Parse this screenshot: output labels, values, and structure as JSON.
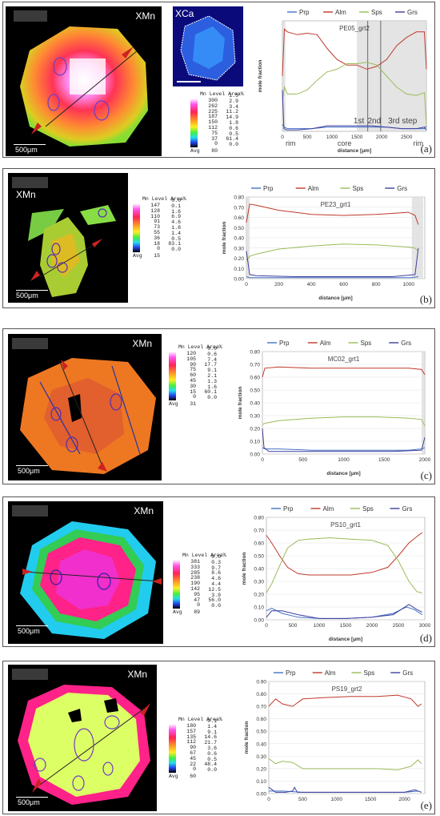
{
  "panels": [
    {
      "id": "a",
      "letter": "(a)",
      "map_label": "XMn",
      "inset_label": "XCa",
      "scale_label": "500μm",
      "legend": {
        "header_level": "Mn Level",
        "header_area": "Area%",
        "levels": [
          "300",
          "262",
          "225",
          "187",
          "150",
          "112",
          "75",
          "37",
          "0"
        ],
        "areas": [
          "1.5",
          "2.9",
          "3.4",
          "11.2",
          "14.9",
          "1.8",
          "0.6",
          "0.5",
          "61.4",
          "0.0"
        ],
        "avg_label": "Avg",
        "avg_value": "80"
      }
    },
    {
      "id": "b",
      "letter": "(b)",
      "map_label": "XMn",
      "scale_label": "500μm",
      "legend": {
        "header_level": "Mn Level",
        "header_area": "Area%",
        "levels": [
          "147",
          "128",
          "110",
          "91",
          "73",
          "55",
          "36",
          "18",
          "0"
        ],
        "areas": [
          "0.0",
          "0.1",
          "1.6",
          "6.9",
          "4.6",
          "1.8",
          "1.4",
          "0.5",
          "83.1",
          "0.0"
        ],
        "avg_label": "Avg",
        "avg_value": "15"
      }
    },
    {
      "id": "c",
      "letter": "(c)",
      "map_label": "XMn",
      "scale_label": "500μm",
      "legend": {
        "header_level": "Mn Level",
        "header_area": "Area%",
        "levels": [
          "120",
          "105",
          "90",
          "75",
          "60",
          "45",
          "30",
          "15",
          "0"
        ],
        "areas": [
          "0.0",
          "0.6",
          "7.4",
          "17.7",
          "9.1",
          "2.1",
          "1.3",
          "1.6",
          "60.1",
          "0.0"
        ],
        "avg_label": "Avg",
        "avg_value": "31"
      }
    },
    {
      "id": "d",
      "letter": "(d)",
      "map_label": "XMn",
      "scale_label": "500μm",
      "legend": {
        "header_level": "Mn Level",
        "header_area": "Area%",
        "levels": [
          "381",
          "333",
          "285",
          "238",
          "190",
          "142",
          "95",
          "47",
          "0"
        ],
        "areas": [
          "0.0",
          "0.3",
          "9.7",
          "8.6",
          "4.6",
          "4.4",
          "12.5",
          "3.9",
          "56.0",
          "0.0"
        ],
        "avg_label": "Avg",
        "avg_value": "89"
      }
    },
    {
      "id": "e",
      "letter": "(e)",
      "map_label": "XMn",
      "scale_label": "500μm",
      "legend": {
        "header_level": "Mn Level",
        "header_area": "Area%",
        "levels": [
          "180",
          "157",
          "135",
          "112",
          "90",
          "67",
          "45",
          "22",
          "0"
        ],
        "areas": [
          "0.1",
          "1.4",
          "9.1",
          "14.6",
          "21.7",
          "3.6",
          "0.6",
          "0.5",
          "48.4",
          "0.0"
        ],
        "avg_label": "Avg",
        "avg_value": "60"
      }
    }
  ],
  "chart_data": [
    {
      "type": "line",
      "title": "PE05_grt2",
      "xlabel": "distance [μm]",
      "ylabel": "mole fraction",
      "xlim": [
        0,
        2900
      ],
      "ylim": [
        0,
        0.8
      ],
      "xticks": [
        0,
        500,
        1000,
        1500,
        2000,
        2500
      ],
      "yticks": [],
      "ylabel_hidden_ticks": true,
      "legend_position": "top",
      "annotations": [
        "rim",
        "core",
        "rim",
        "1st",
        "2nd",
        "3rd step"
      ],
      "shaded_ranges": [
        [
          0,
          60
        ],
        [
          1500,
          2950
        ]
      ],
      "step_lines": [
        1720,
        1980
      ],
      "series": [
        {
          "name": "Prp",
          "color": "#4472c4",
          "x": [
            0,
            40,
            100,
            300,
            600,
            900,
            1200,
            1500,
            1800,
            2100,
            2400,
            2700,
            2860,
            2900
          ],
          "y": [
            0.05,
            0.03,
            0.02,
            0.02,
            0.02,
            0.03,
            0.03,
            0.03,
            0.03,
            0.03,
            0.02,
            0.02,
            0.02,
            0.04
          ]
        },
        {
          "name": "Alm",
          "color": "#c0392b",
          "x": [
            0,
            40,
            100,
            300,
            500,
            700,
            900,
            1100,
            1300,
            1500,
            1700,
            1900,
            2100,
            2300,
            2500,
            2700,
            2860,
            2900
          ],
          "y": [
            0.4,
            0.74,
            0.72,
            0.7,
            0.71,
            0.7,
            0.6,
            0.52,
            0.48,
            0.48,
            0.45,
            0.47,
            0.52,
            0.62,
            0.68,
            0.72,
            0.72,
            0.45
          ]
        },
        {
          "name": "Sps",
          "color": "#9bbb59",
          "x": [
            0,
            40,
            100,
            300,
            500,
            700,
            900,
            1100,
            1300,
            1500,
            1700,
            1900,
            2100,
            2300,
            2500,
            2700,
            2860,
            2900
          ],
          "y": [
            0.22,
            0.32,
            0.27,
            0.27,
            0.3,
            0.37,
            0.43,
            0.45,
            0.49,
            0.49,
            0.5,
            0.48,
            0.4,
            0.32,
            0.27,
            0.26,
            0.28,
            0.05
          ]
        },
        {
          "name": "Grs",
          "color": "#3f3f9f",
          "x": [
            0,
            30,
            80,
            300,
            600,
            900,
            1200,
            1500,
            1800,
            2100,
            2400,
            2700,
            2860,
            2900
          ],
          "y": [
            0.3,
            0.02,
            0.01,
            0.01,
            0.02,
            0.04,
            0.04,
            0.04,
            0.04,
            0.03,
            0.02,
            0.02,
            0.03,
            0.01
          ]
        }
      ]
    },
    {
      "type": "line",
      "title": "PE23_grt1",
      "xlabel": "distance [μm]",
      "ylabel": "mole fraction",
      "xlim": [
        0,
        1100
      ],
      "ylim": [
        0,
        0.8
      ],
      "xticks": [
        0,
        200,
        400,
        600,
        800,
        1000
      ],
      "yticks": [
        0,
        0.1,
        0.2,
        0.3,
        0.4,
        0.5,
        0.6,
        0.7,
        0.8
      ],
      "legend_position": "top",
      "shaded_ranges": [
        [
          0,
          20
        ],
        [
          1020,
          1090
        ]
      ],
      "series": [
        {
          "name": "Prp",
          "color": "#4472c4",
          "x": [
            0,
            20,
            100,
            300,
            500,
            700,
            900,
            1020,
            1060
          ],
          "y": [
            0.02,
            0.01,
            0.01,
            0.01,
            0.01,
            0.01,
            0.01,
            0.01,
            0.02
          ]
        },
        {
          "name": "Alm",
          "color": "#c0392b",
          "x": [
            0,
            20,
            60,
            200,
            400,
            600,
            800,
            1000,
            1040,
            1060
          ],
          "y": [
            0.55,
            0.73,
            0.72,
            0.67,
            0.63,
            0.62,
            0.63,
            0.65,
            0.62,
            0.53
          ]
        },
        {
          "name": "Sps",
          "color": "#9bbb59",
          "x": [
            0,
            20,
            60,
            200,
            400,
            600,
            800,
            1000,
            1040,
            1060
          ],
          "y": [
            0.18,
            0.22,
            0.24,
            0.29,
            0.32,
            0.34,
            0.33,
            0.31,
            0.3,
            0.27
          ]
        },
        {
          "name": "Grs",
          "color": "#3f3f9f",
          "x": [
            0,
            20,
            60,
            300,
            600,
            900,
            1040,
            1060
          ],
          "y": [
            0.27,
            0.04,
            0.03,
            0.02,
            0.02,
            0.02,
            0.04,
            0.3
          ]
        }
      ]
    },
    {
      "type": "line",
      "title": "MC02_grt1",
      "xlabel": "distance [μm]",
      "ylabel": "mole fraction",
      "xlim": [
        0,
        2000
      ],
      "ylim": [
        0,
        0.8
      ],
      "xticks": [
        0,
        500,
        1000,
        1500,
        2000
      ],
      "yticks": [
        0,
        0.1,
        0.2,
        0.3,
        0.4,
        0.5,
        0.6,
        0.7,
        0.8
      ],
      "legend_position": "top",
      "shaded_ranges": [
        [
          1960,
          2010
        ]
      ],
      "series": [
        {
          "name": "Prp",
          "color": "#4472c4",
          "x": [
            0,
            30,
            200,
            600,
            1000,
            1400,
            1800,
            1960,
            2000
          ],
          "y": [
            0.05,
            0.04,
            0.04,
            0.03,
            0.03,
            0.03,
            0.03,
            0.04,
            0.05
          ]
        },
        {
          "name": "Alm",
          "color": "#c0392b",
          "x": [
            0,
            30,
            200,
            600,
            1000,
            1400,
            1800,
            1960,
            2000
          ],
          "y": [
            0.6,
            0.67,
            0.68,
            0.67,
            0.67,
            0.67,
            0.67,
            0.66,
            0.62
          ]
        },
        {
          "name": "Sps",
          "color": "#9bbb59",
          "x": [
            0,
            30,
            200,
            600,
            1000,
            1400,
            1800,
            1960,
            2000
          ],
          "y": [
            0.23,
            0.24,
            0.26,
            0.28,
            0.29,
            0.29,
            0.28,
            0.27,
            0.22
          ]
        },
        {
          "name": "Grs",
          "color": "#3f3f9f",
          "x": [
            0,
            20,
            80,
            400,
            800,
            1200,
            1600,
            1960,
            2000
          ],
          "y": [
            0.2,
            0.05,
            0.02,
            0.02,
            0.02,
            0.02,
            0.02,
            0.03,
            0.13
          ]
        }
      ]
    },
    {
      "type": "line",
      "title": "PS10_grt1",
      "xlabel": "distance [μm]",
      "ylabel": "mole fraction",
      "xlim": [
        0,
        3000
      ],
      "ylim": [
        0,
        0.8
      ],
      "xticks": [
        0,
        500,
        1000,
        1500,
        2000,
        2500,
        3000
      ],
      "yticks": [
        0,
        0.1,
        0.2,
        0.3,
        0.4,
        0.5,
        0.6,
        0.7,
        0.8
      ],
      "legend_position": "top",
      "series": [
        {
          "name": "Prp",
          "color": "#4472c4",
          "x": [
            0,
            100,
            300,
            600,
            1000,
            1500,
            2000,
            2400,
            2650,
            2800,
            2950
          ],
          "y": [
            0.07,
            0.09,
            0.05,
            0.02,
            0.01,
            0.01,
            0.02,
            0.05,
            0.1,
            0.08,
            0.04
          ]
        },
        {
          "name": "Alm",
          "color": "#c0392b",
          "x": [
            0,
            100,
            250,
            400,
            600,
            800,
            1200,
            1600,
            2000,
            2300,
            2500,
            2700,
            2850,
            2950
          ],
          "y": [
            0.66,
            0.6,
            0.5,
            0.41,
            0.36,
            0.35,
            0.35,
            0.35,
            0.37,
            0.41,
            0.5,
            0.6,
            0.65,
            0.68
          ]
        },
        {
          "name": "Sps",
          "color": "#9bbb59",
          "x": [
            0,
            100,
            250,
            400,
            600,
            800,
            1200,
            1600,
            2000,
            2300,
            2500,
            2700,
            2850,
            2950
          ],
          "y": [
            0.21,
            0.28,
            0.42,
            0.56,
            0.62,
            0.63,
            0.64,
            0.63,
            0.62,
            0.58,
            0.46,
            0.3,
            0.22,
            0.21
          ]
        },
        {
          "name": "Grs",
          "color": "#3f3f9f",
          "x": [
            0,
            100,
            300,
            600,
            1000,
            1500,
            2000,
            2400,
            2700,
            2850,
            2950
          ],
          "y": [
            0.02,
            0.07,
            0.07,
            0.04,
            0.01,
            0.01,
            0.02,
            0.04,
            0.12,
            0.08,
            0.06
          ]
        }
      ]
    },
    {
      "type": "line",
      "title": "PS19_grt2",
      "xlabel": "",
      "ylabel": "mole fraction",
      "xlim": [
        0,
        2300
      ],
      "ylim": [
        0,
        0.9
      ],
      "xticks": [
        0,
        500,
        1000,
        1500,
        2000
      ],
      "yticks": [
        0,
        0.1,
        0.2,
        0.3,
        0.4,
        0.5,
        0.6,
        0.7,
        0.8,
        0.9
      ],
      "legend_position": "top",
      "series": [
        {
          "name": "Prp",
          "color": "#4472c4",
          "x": [
            0,
            200,
            500,
            1000,
            1500,
            2000,
            2200
          ],
          "y": [
            0.02,
            0.02,
            0.01,
            0.01,
            0.01,
            0.01,
            0.02
          ]
        },
        {
          "name": "Alm",
          "color": "#c0392b",
          "x": [
            0,
            100,
            200,
            350,
            500,
            800,
            1200,
            1600,
            1900,
            2100,
            2200,
            2250
          ],
          "y": [
            0.7,
            0.76,
            0.72,
            0.7,
            0.76,
            0.77,
            0.78,
            0.78,
            0.79,
            0.76,
            0.7,
            0.72
          ]
        },
        {
          "name": "Sps",
          "color": "#9bbb59",
          "x": [
            0,
            100,
            200,
            350,
            500,
            800,
            1200,
            1600,
            1900,
            2100,
            2200,
            2250
          ],
          "y": [
            0.28,
            0.24,
            0.26,
            0.25,
            0.2,
            0.2,
            0.2,
            0.2,
            0.19,
            0.22,
            0.27,
            0.24
          ]
        },
        {
          "name": "Grs",
          "color": "#3f3f9f",
          "x": [
            0,
            100,
            250,
            350,
            380,
            420,
            600,
            1000,
            1500,
            2000,
            2150,
            2250
          ],
          "y": [
            0.05,
            0.01,
            0.01,
            0.02,
            0.05,
            0.01,
            0.01,
            0.01,
            0.01,
            0.01,
            0.03,
            0.01
          ]
        }
      ]
    }
  ]
}
